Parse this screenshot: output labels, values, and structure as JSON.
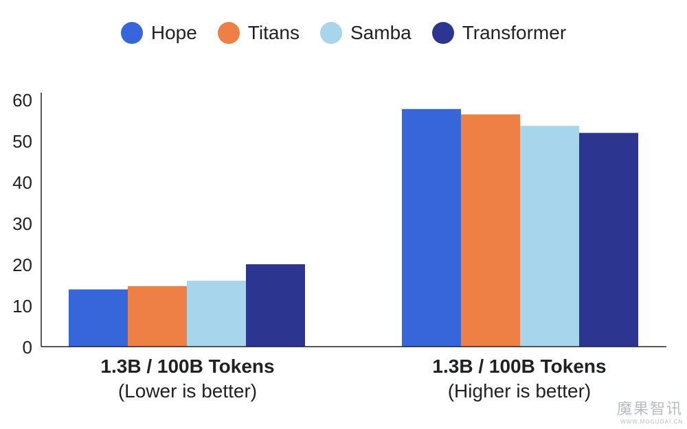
{
  "chart_data": {
    "type": "bar",
    "title": "",
    "xlabel": "",
    "ylabel": "",
    "ylim": [
      0,
      60
    ],
    "yticks": [
      0,
      10,
      20,
      30,
      40,
      50,
      60
    ],
    "grid": false,
    "legend_position": "top-center",
    "categories": [
      {
        "title": "1.3B / 100B Tokens",
        "subtitle": "(Lower is better)"
      },
      {
        "title": "1.3B / 100B Tokens",
        "subtitle": "(Higher is better)"
      }
    ],
    "series": [
      {
        "name": "Hope",
        "color": "#3766DA",
        "values": [
          13.9,
          57.7
        ]
      },
      {
        "name": "Titans",
        "color": "#EE7F45",
        "values": [
          14.7,
          56.4
        ]
      },
      {
        "name": "Samba",
        "color": "#A7D6EC",
        "values": [
          16.0,
          53.6
        ]
      },
      {
        "name": "Transformer",
        "color": "#2C3690",
        "values": [
          20.0,
          51.9
        ]
      }
    ]
  },
  "watermark": {
    "line1": "魔果智讯",
    "line2": "WWW.MOGUOAI.CN"
  }
}
